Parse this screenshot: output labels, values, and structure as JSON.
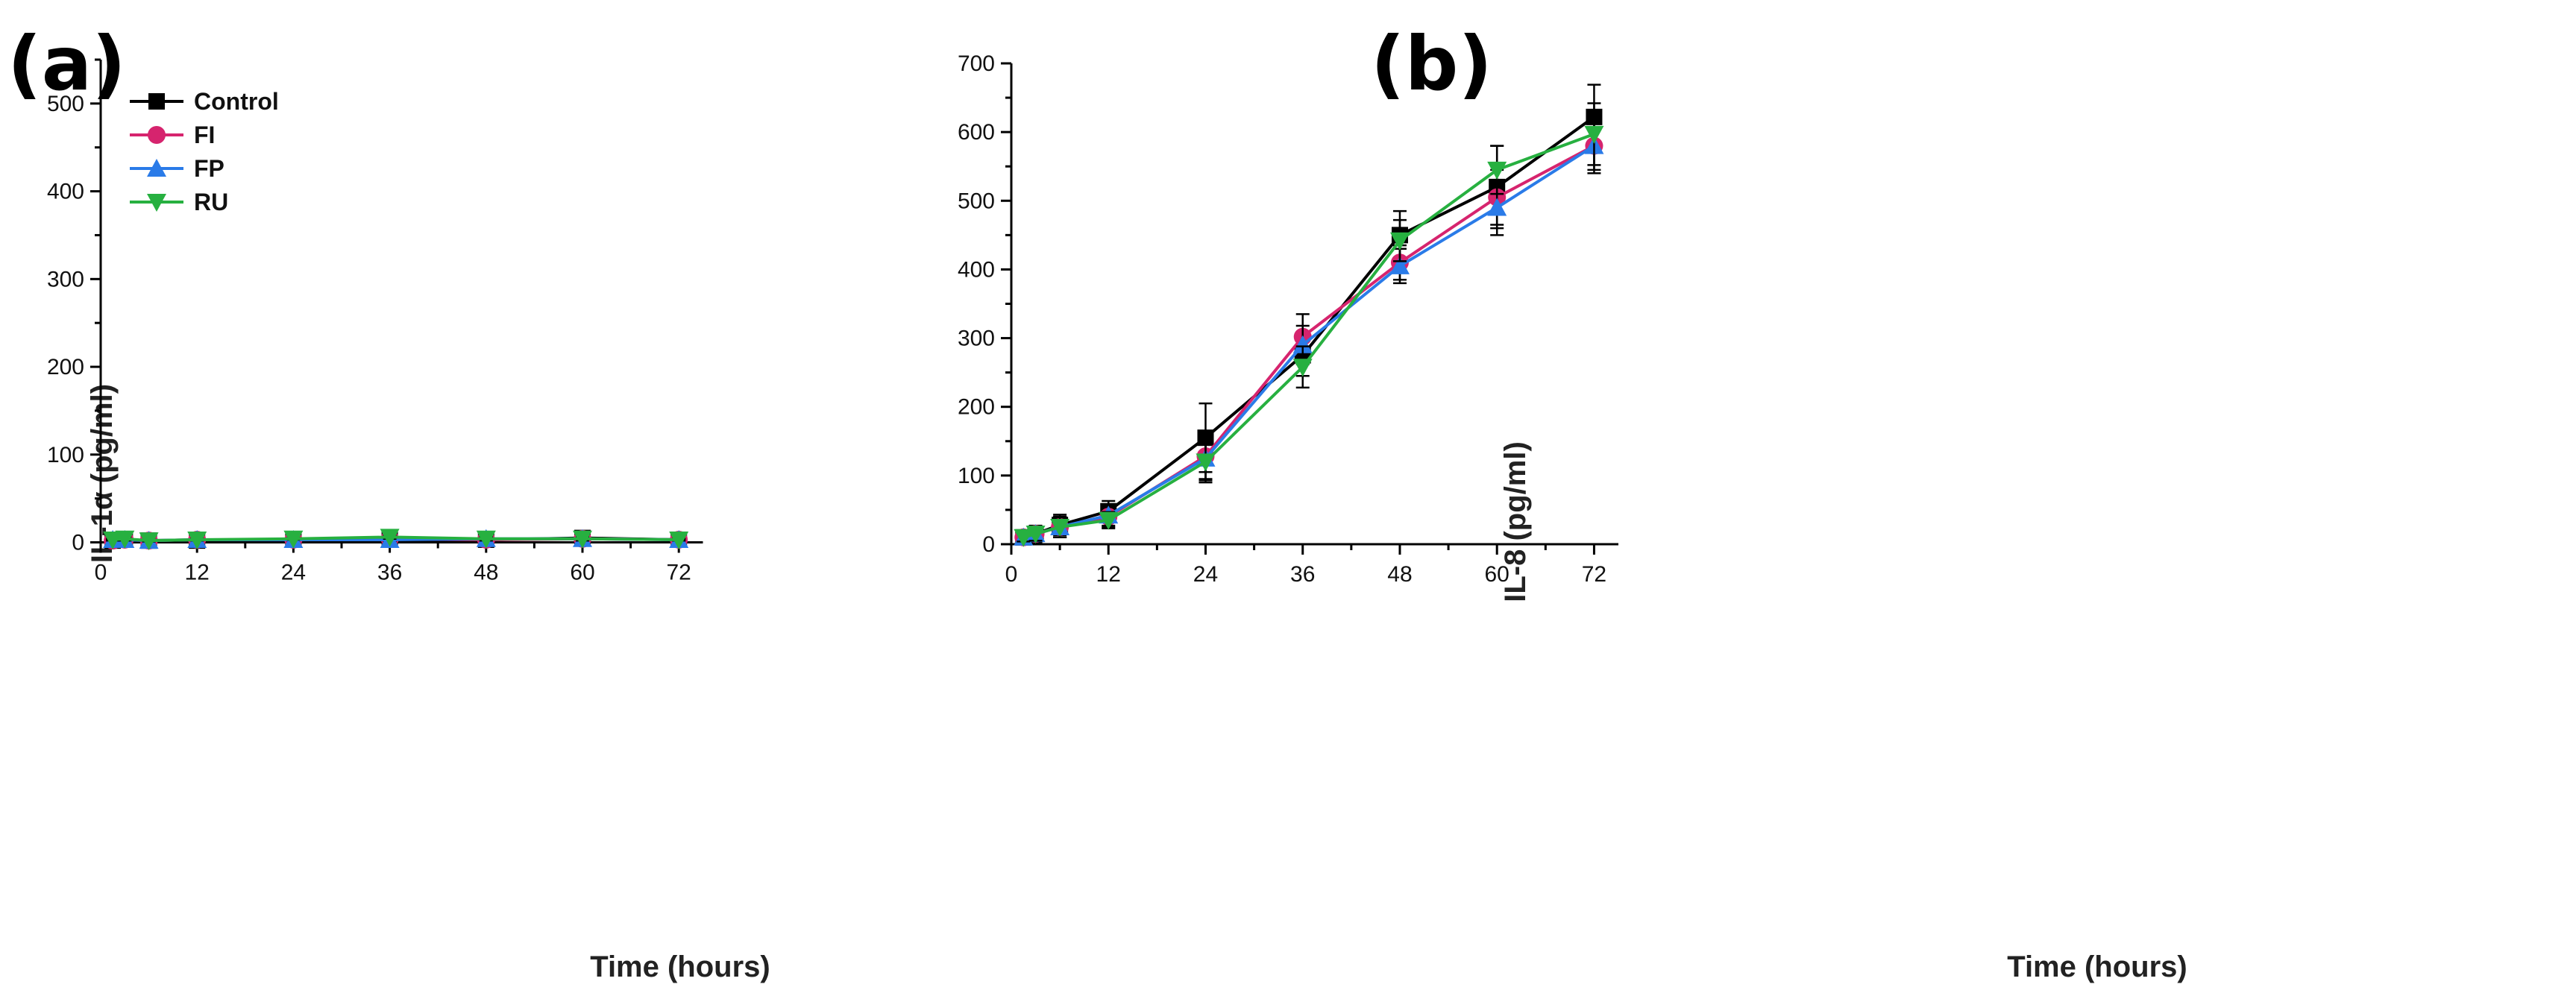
{
  "colors": {
    "Control": "#000000",
    "FI": "#d6246e",
    "FP": "#2a7be8",
    "RU": "#27b040"
  },
  "chart_data": [
    {
      "type": "line",
      "panel": "(a)",
      "xlabel": "Time (hours)",
      "ylabel": "IL-1α (pg/ml)",
      "xlim": [
        0,
        75
      ],
      "ylim": [
        0,
        550
      ],
      "xticks": [
        0,
        12,
        24,
        36,
        48,
        60,
        72
      ],
      "yticks": [
        0,
        100,
        200,
        300,
        400,
        500
      ],
      "legend": {
        "position": "top-left",
        "entries": [
          "Control",
          "FI",
          "FP",
          "RU"
        ]
      },
      "x": [
        1.5,
        3,
        6,
        12,
        24,
        36,
        48,
        60,
        72
      ],
      "series": [
        {
          "name": "Control",
          "marker": "square",
          "values": [
            2,
            3,
            2,
            2,
            3,
            3,
            3,
            5,
            3
          ],
          "errors": [
            1,
            1,
            1,
            1,
            1,
            2,
            1,
            2,
            1
          ]
        },
        {
          "name": "FI",
          "marker": "circle",
          "values": [
            2,
            3,
            2,
            3,
            3,
            4,
            3,
            4,
            3
          ],
          "errors": [
            1,
            1,
            1,
            1,
            1,
            2,
            1,
            2,
            1
          ]
        },
        {
          "name": "FP",
          "marker": "triangle-up",
          "values": [
            3,
            3,
            2,
            3,
            3,
            3,
            4,
            4,
            3
          ],
          "errors": [
            1,
            1,
            1,
            1,
            1,
            2,
            2,
            2,
            1
          ]
        },
        {
          "name": "RU",
          "marker": "triangle-down",
          "values": [
            3,
            4,
            2,
            3,
            4,
            6,
            4,
            4,
            3
          ],
          "errors": [
            1,
            2,
            1,
            1,
            1,
            2,
            2,
            2,
            1
          ]
        }
      ]
    },
    {
      "type": "line",
      "panel": "(b)",
      "xlabel": "Time (hours)",
      "ylabel": "IL-8 (pg/ml)",
      "xlim": [
        0,
        75
      ],
      "ylim": [
        0,
        700
      ],
      "xticks": [
        0,
        12,
        24,
        36,
        48,
        60,
        72
      ],
      "yticks": [
        0,
        100,
        200,
        300,
        400,
        500,
        600,
        700
      ],
      "legend": null,
      "x": [
        1.5,
        3,
        6,
        12,
        24,
        36,
        48,
        60,
        72
      ],
      "series": [
        {
          "name": "Control",
          "marker": "square",
          "values": [
            10,
            15,
            28,
            48,
            155,
            275,
            450,
            520,
            622
          ],
          "errors": [
            7,
            12,
            15,
            15,
            50,
            30,
            35,
            60,
            47
          ]
        },
        {
          "name": "FI",
          "marker": "circle",
          "values": [
            10,
            15,
            25,
            40,
            128,
            302,
            410,
            505,
            580
          ],
          "errors": [
            6,
            10,
            15,
            15,
            35,
            33,
            25,
            40,
            40
          ]
        },
        {
          "name": "FP",
          "marker": "triangle-up",
          "values": [
            10,
            15,
            25,
            42,
            125,
            290,
            405,
            490,
            580
          ],
          "errors": [
            6,
            10,
            15,
            15,
            30,
            28,
            25,
            40,
            35
          ]
        },
        {
          "name": "RU",
          "marker": "triangle-down",
          "values": [
            10,
            15,
            25,
            35,
            120,
            258,
            442,
            545,
            597
          ],
          "errors": [
            6,
            10,
            15,
            12,
            30,
            30,
            30,
            35,
            45
          ]
        }
      ]
    }
  ]
}
